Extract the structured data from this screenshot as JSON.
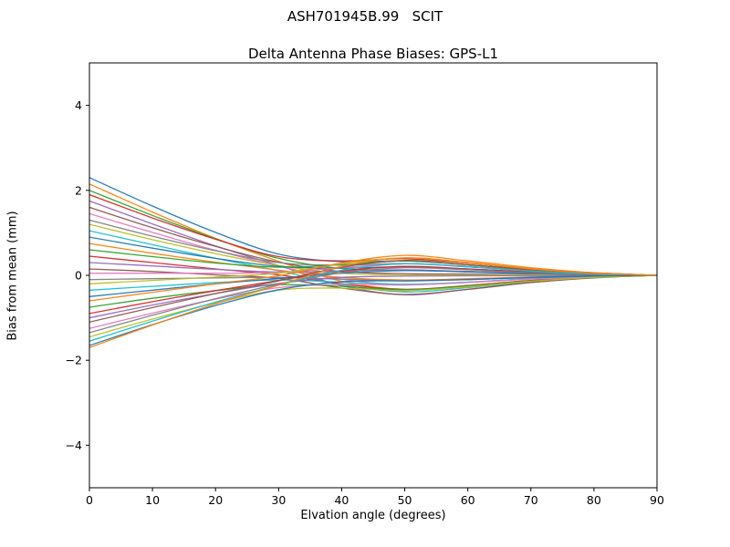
{
  "chart_data": {
    "type": "line",
    "title": "ASH701945B.99   SCIT",
    "subtitle": "Delta Antenna Phase Biases: GPS-L1",
    "xlabel": "Elvation angle (degrees)",
    "ylabel": "Bias from mean (mm)",
    "xlim": [
      0,
      90
    ],
    "ylim": [
      -5,
      5
    ],
    "grid": false,
    "legend": "none",
    "xticks": [
      0,
      10,
      20,
      30,
      40,
      50,
      60,
      70,
      80,
      90
    ],
    "xticklabels": [
      "0",
      "10",
      "20",
      "30",
      "40",
      "50",
      "60",
      "70",
      "80",
      "90"
    ],
    "yticks": [
      -4,
      -2,
      0,
      2,
      4
    ],
    "yticklabels": [
      "−4",
      "−2",
      "0",
      "2",
      "4"
    ],
    "x": [
      0,
      10,
      20,
      30,
      40,
      50,
      60,
      70,
      80,
      90
    ],
    "palette": [
      "#1f77b4",
      "#ff7f0e",
      "#2ca02c",
      "#d62728",
      "#9467bd",
      "#8c564b",
      "#e377c2",
      "#7f7f7f",
      "#bcbd22",
      "#17becf"
    ],
    "series": [
      {
        "values": [
          2.3,
          1.63,
          1.01,
          0.5,
          0.32,
          0.34,
          0.25,
          0.13,
          0.05,
          0
        ]
      },
      {
        "values": [
          2.15,
          1.49,
          0.87,
          0.33,
          -0.14,
          -0.33,
          -0.24,
          -0.12,
          -0.04,
          0
        ]
      },
      {
        "values": [
          2.0,
          1.41,
          0.86,
          0.4,
          0.16,
          0.12,
          0.09,
          0.05,
          0.02,
          0
        ]
      },
      {
        "values": [
          1.9,
          1.35,
          0.85,
          0.44,
          0.34,
          0.39,
          0.29,
          0.15,
          0.06,
          0
        ]
      },
      {
        "values": [
          1.75,
          1.21,
          0.69,
          0.23,
          -0.24,
          -0.46,
          -0.33,
          -0.17,
          -0.05,
          0
        ]
      },
      {
        "values": [
          1.6,
          1.12,
          0.68,
          0.31,
          0.09,
          0.04,
          0.03,
          0.02,
          0.01,
          0
        ]
      },
      {
        "values": [
          1.45,
          1.01,
          0.59,
          0.22,
          -0.09,
          -0.22,
          -0.16,
          -0.08,
          -0.02,
          0
        ]
      },
      {
        "values": [
          1.3,
          0.92,
          0.58,
          0.3,
          0.24,
          0.28,
          0.21,
          0.11,
          0.04,
          0
        ]
      },
      {
        "values": [
          1.2,
          0.84,
          0.51,
          0.23,
          0.05,
          0.01,
          0.01,
          0.01,
          0.01,
          0
        ]
      },
      {
        "values": [
          1.05,
          0.72,
          0.4,
          0.11,
          -0.22,
          -0.39,
          -0.29,
          -0.15,
          -0.05,
          0
        ]
      },
      {
        "values": [
          0.9,
          0.64,
          0.4,
          0.21,
          0.17,
          0.2,
          0.15,
          0.08,
          0.03,
          0
        ]
      },
      {
        "values": [
          0.75,
          0.52,
          0.31,
          0.12,
          -0.05,
          -0.11,
          -0.08,
          -0.04,
          -0.01,
          0
        ]
      },
      {
        "values": [
          0.6,
          0.44,
          0.29,
          0.19,
          0.25,
          0.34,
          0.25,
          0.13,
          0.05,
          0
        ]
      },
      {
        "values": [
          0.45,
          0.3,
          0.15,
          0.01,
          -0.2,
          -0.33,
          -0.24,
          -0.12,
          -0.04,
          0
        ]
      },
      {
        "values": [
          0.3,
          0.22,
          0.14,
          0.08,
          0.1,
          0.13,
          0.09,
          0.05,
          0.02,
          0
        ]
      },
      {
        "values": [
          0.15,
          0.09,
          0.01,
          -0.07,
          -0.3,
          -0.45,
          -0.33,
          -0.17,
          -0.06,
          0
        ]
      },
      {
        "values": [
          0.05,
          0.05,
          0.05,
          0.07,
          0.18,
          0.27,
          0.2,
          0.1,
          0.04,
          0
        ]
      },
      {
        "values": [
          -0.1,
          -0.08,
          -0.06,
          -0.05,
          -0.09,
          -0.13,
          -0.1,
          -0.05,
          -0.02,
          0
        ]
      },
      {
        "values": [
          -0.2,
          -0.12,
          -0.04,
          0.05,
          0.27,
          0.41,
          0.3,
          0.16,
          0.05,
          0
        ]
      },
      {
        "values": [
          -0.35,
          -0.26,
          -0.17,
          -0.11,
          -0.16,
          -0.21,
          -0.16,
          -0.08,
          -0.03,
          0
        ]
      },
      {
        "values": [
          -0.5,
          -0.35,
          -0.2,
          -0.07,
          0.05,
          0.11,
          0.08,
          0.04,
          0.01,
          0
        ]
      },
      {
        "values": [
          -0.6,
          -0.4,
          -0.2,
          -0.01,
          0.29,
          0.47,
          0.34,
          0.18,
          0.06,
          0
        ]
      },
      {
        "values": [
          -0.75,
          -0.54,
          -0.36,
          -0.22,
          -0.26,
          -0.34,
          -0.25,
          -0.13,
          -0.05,
          0
        ]
      },
      {
        "values": [
          -0.9,
          -0.62,
          -0.36,
          -0.12,
          0.1,
          0.21,
          0.15,
          0.08,
          0.02,
          0
        ]
      },
      {
        "values": [
          -1.0,
          -0.7,
          -0.43,
          -0.19,
          -0.05,
          -0.02,
          -0.01,
          -0.01,
          -0.01,
          0
        ]
      },
      {
        "values": [
          -1.1,
          -0.76,
          -0.43,
          -0.13,
          0.19,
          0.35,
          0.25,
          0.13,
          0.04,
          0
        ]
      },
      {
        "values": [
          -1.25,
          -0.89,
          -0.56,
          -0.29,
          -0.21,
          -0.23,
          -0.17,
          -0.09,
          -0.04,
          0
        ]
      },
      {
        "values": [
          -1.35,
          -0.94,
          -0.55,
          -0.21,
          0.06,
          0.18,
          0.13,
          0.06,
          0.02,
          0
        ]
      },
      {
        "values": [
          -1.45,
          -1.03,
          -0.65,
          -0.35,
          -0.3,
          -0.36,
          -0.27,
          -0.14,
          -0.05,
          0
        ]
      },
      {
        "values": [
          -1.55,
          -1.08,
          -0.63,
          -0.23,
          0.12,
          0.27,
          0.2,
          0.1,
          0.03,
          0
        ]
      },
      {
        "values": [
          -1.65,
          -1.16,
          -0.71,
          -0.34,
          -0.15,
          -0.13,
          -0.1,
          -0.05,
          -0.02,
          0
        ]
      },
      {
        "values": [
          -1.7,
          -1.17,
          -0.67,
          -0.23,
          0.21,
          0.41,
          0.3,
          0.15,
          0.05,
          0
        ]
      }
    ]
  }
}
